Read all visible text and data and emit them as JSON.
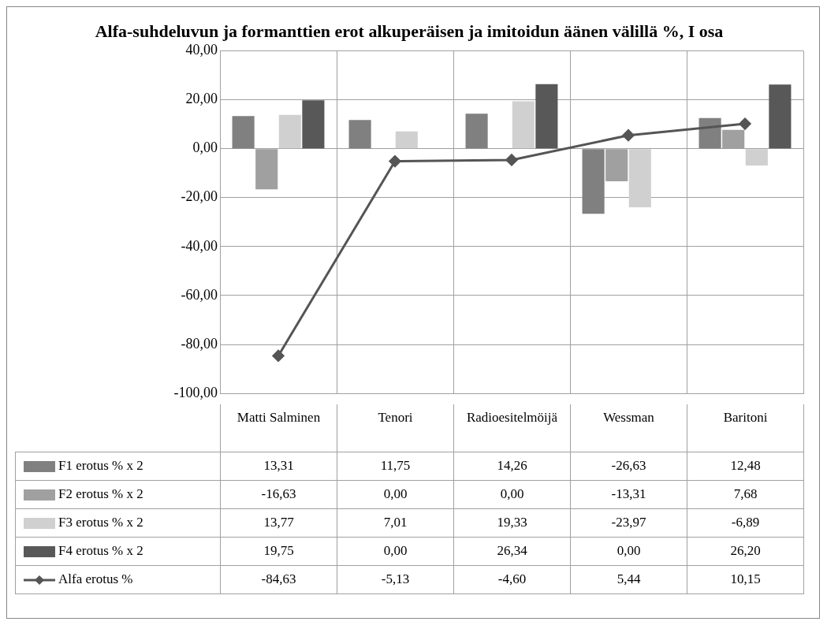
{
  "chart_data": {
    "type": "bar",
    "title": "Alfa-suhdeluvun ja formanttien erot alkuperäisen ja imitoidun äänen välillä %, I osa",
    "categories": [
      "Matti Salminen",
      "Tenori",
      "Radioesitelmöijä",
      "Wessman",
      "Baritoni"
    ],
    "series": [
      {
        "name": "F1 erotus % x 2",
        "color": "#808080",
        "values": [
          13.31,
          11.75,
          14.26,
          -26.63,
          12.48
        ],
        "value_labels": [
          "13,31",
          "11,75",
          "14,26",
          "-26,63",
          "12,48"
        ]
      },
      {
        "name": "F2 erotus % x 2",
        "color": "#a0a0a0",
        "values": [
          -16.63,
          0,
          0,
          -13.31,
          7.68
        ],
        "value_labels": [
          "-16,63",
          "0,00",
          "0,00",
          "-13,31",
          "7,68"
        ]
      },
      {
        "name": "F3 erotus % x 2",
        "color": "#d0d0d0",
        "values": [
          13.77,
          7.01,
          19.33,
          -23.97,
          -6.89
        ],
        "value_labels": [
          "13,77",
          "7,01",
          "19,33",
          "-23,97",
          "-6,89"
        ]
      },
      {
        "name": "F4 erotus % x 2",
        "color": "#585858",
        "values": [
          19.75,
          0,
          26.34,
          0,
          26.2
        ],
        "value_labels": [
          "19,75",
          "0,00",
          "26,34",
          "0,00",
          "26,20"
        ]
      },
      {
        "name": "Alfa erotus %",
        "type": "line",
        "color": "#555555",
        "marker": "diamond",
        "values": [
          -84.63,
          -5.13,
          -4.6,
          5.44,
          10.15
        ],
        "value_labels": [
          "-84,63",
          "-5,13",
          "-4,60",
          "5,44",
          "10,15"
        ]
      }
    ],
    "ylim": [
      -100,
      40
    ],
    "yticks": [
      {
        "value": -100,
        "label": "-100,00"
      },
      {
        "value": -80,
        "label": "-80,00"
      },
      {
        "value": -60,
        "label": "-60,00"
      },
      {
        "value": -40,
        "label": "-40,00"
      },
      {
        "value": -20,
        "label": "-20,00"
      },
      {
        "value": 0,
        "label": "0,00"
      },
      {
        "value": 20,
        "label": "20,00"
      },
      {
        "value": 40,
        "label": "40,00"
      }
    ],
    "grid": true,
    "legend": "bottom"
  }
}
